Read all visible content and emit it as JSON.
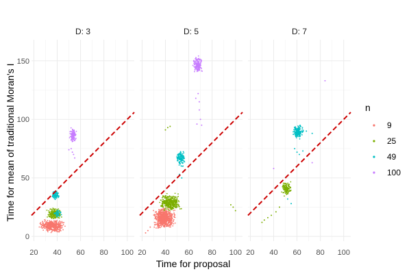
{
  "chart_data": {
    "type": "scatter",
    "xlabel": "Time for proposal",
    "ylabel": "Time for mean of traditional Moran's I",
    "xlim": [
      18,
      106
    ],
    "ylim": [
      -4,
      168
    ],
    "x_ticks": [
      20,
      40,
      60,
      80,
      100
    ],
    "y_ticks": [
      0,
      50,
      100,
      150
    ],
    "grid": true,
    "legend_position": "right",
    "legend_title": "n",
    "reference_line": {
      "type": "identity",
      "color": "#cc0000",
      "style": "dashed"
    },
    "series_colors": {
      "9": "#F8766D",
      "25": "#7CAE00",
      "49": "#00BFC4",
      "100": "#C77CFF"
    },
    "panels": [
      {
        "label": "D: 3",
        "series": [
          {
            "name": "9",
            "clusters": [
              {
                "x": [
                  23,
                  48
                ],
                "y": [
                  3,
                  15
                ],
                "density": 420
              }
            ],
            "points": []
          },
          {
            "name": "25",
            "clusters": [
              {
                "x": [
                  30,
                  45
                ],
                "y": [
                  13,
                  25
                ],
                "density": 200
              }
            ],
            "points": []
          },
          {
            "name": "49",
            "clusters": [
              {
                "x": [
                  35,
                  42
                ],
                "y": [
                  31,
                  40
                ],
                "density": 80
              },
              {
                "x": [
                  36,
                  45
                ],
                "y": [
                  16,
                  24
                ],
                "density": 40
              }
            ],
            "points": []
          },
          {
            "name": "100",
            "clusters": [
              {
                "x": [
                  50,
                  57
                ],
                "y": [
                  78,
                  95
                ],
                "density": 110
              }
            ],
            "points": [
              [
                52,
                75
              ],
              [
                53,
                72
              ],
              [
                54,
                70
              ],
              [
                55,
                67
              ],
              [
                50,
                74
              ]
            ]
          }
        ]
      },
      {
        "label": "D: 5",
        "series": [
          {
            "name": "9",
            "clusters": [
              {
                "x": [
                  28,
                  50
                ],
                "y": [
                  5,
                  26
                ],
                "density": 650
              }
            ],
            "points": [
              [
                23,
                3
              ],
              [
                25,
                5
              ],
              [
                27,
                8
              ]
            ]
          },
          {
            "name": "25",
            "clusters": [
              {
                "x": [
                  33,
                  55
                ],
                "y": [
                  20,
                  38
                ],
                "density": 380
              }
            ],
            "points": [
              [
                40,
                91
              ],
              [
                42,
                93
              ],
              [
                44,
                94
              ],
              [
                96,
                27
              ],
              [
                98,
                25
              ],
              [
                100,
                22
              ]
            ]
          },
          {
            "name": "49",
            "clusters": [
              {
                "x": [
                  48,
                  58
                ],
                "y": [
                  58,
                  76
                ],
                "density": 130
              }
            ],
            "points": [
              [
                52,
                53
              ],
              [
                54,
                50
              ]
            ]
          },
          {
            "name": "100",
            "clusters": [
              {
                "x": [
                  63,
                  72
                ],
                "y": [
                  138,
                  155
                ],
                "density": 150
              }
            ],
            "points": [
              [
                68,
                122
              ],
              [
                69,
                115
              ],
              [
                69,
                108
              ],
              [
                70,
                100
              ],
              [
                71,
                95
              ],
              [
                67,
                96
              ],
              [
                66,
                118
              ]
            ]
          }
        ]
      },
      {
        "label": "D: 7",
        "series": [
          {
            "name": "9",
            "clusters": [],
            "points": []
          },
          {
            "name": "25",
            "clusters": [
              {
                "x": [
                  46,
                  56
                ],
                "y": [
                  34,
                  48
                ],
                "density": 130
              }
            ],
            "points": [
              [
                30,
                12
              ],
              [
                32,
                14
              ],
              [
                35,
                16
              ],
              [
                38,
                18
              ],
              [
                42,
                21
              ],
              [
                45,
                25
              ]
            ]
          },
          {
            "name": "49",
            "clusters": [
              {
                "x": [
                  56,
                  66
                ],
                "y": [
                  82,
                  97
                ],
                "density": 170
              }
            ],
            "points": [
              [
                58,
                75
              ],
              [
                60,
                72
              ],
              [
                62,
                70
              ],
              [
                65,
                73
              ],
              [
                55,
                28
              ],
              [
                52,
                32
              ],
              [
                68,
                90
              ],
              [
                73,
                88
              ]
            ]
          },
          {
            "name": "100",
            "clusters": [],
            "points": [
              [
                40,
                58
              ],
              [
                84,
                133
              ],
              [
                73,
                63
              ]
            ]
          }
        ]
      }
    ]
  }
}
